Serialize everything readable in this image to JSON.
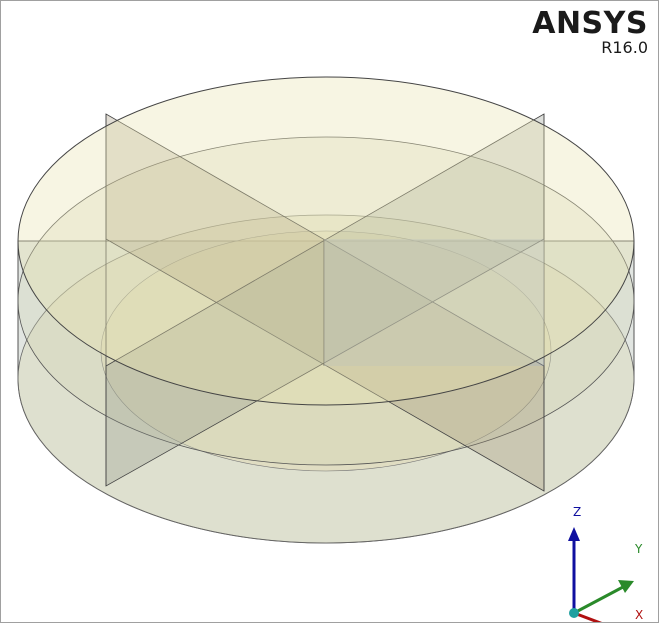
{
  "logo": {
    "name": "ANSYS",
    "version": "R16.0"
  },
  "triad": {
    "z": "Z",
    "y": "Y",
    "x": "X"
  }
}
